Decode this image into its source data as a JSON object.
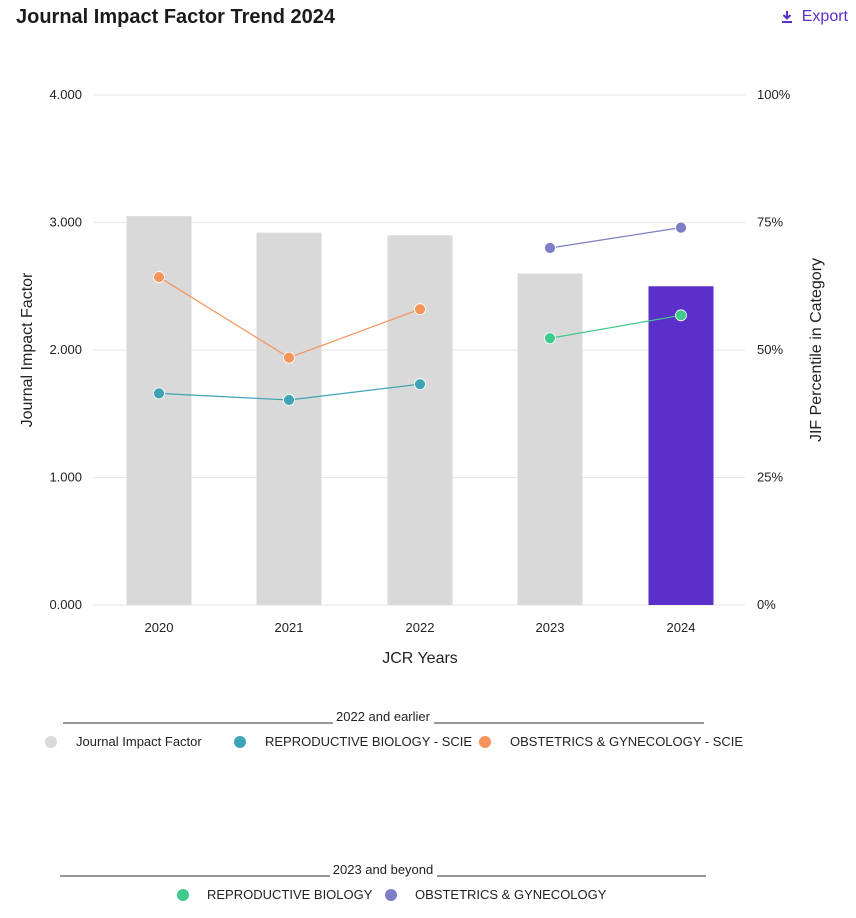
{
  "header": {
    "title": "Journal Impact Factor Trend 2024",
    "export_label": "Export",
    "export_icon": "download-icon"
  },
  "chart_data": {
    "type": "bar",
    "title": "Journal Impact Factor Trend 2024",
    "xlabel": "JCR Years",
    "ylabel": "Journal Impact Factor",
    "y2label": "JIF Percentile in Category",
    "categories": [
      "2020",
      "2021",
      "2022",
      "2023",
      "2024"
    ],
    "ylim": [
      0,
      4
    ],
    "y2lim": [
      0,
      100
    ],
    "yticks": [
      "0.000",
      "1.000",
      "2.000",
      "3.000",
      "4.000"
    ],
    "y2ticks": [
      "0%",
      "25%",
      "50%",
      "75%",
      "100%"
    ],
    "bars": {
      "name": "Journal Impact Factor",
      "values": [
        3.05,
        2.92,
        2.9,
        2.6,
        2.5
      ],
      "colors": [
        "#d9d9d9",
        "#d9d9d9",
        "#d9d9d9",
        "#d9d9d9",
        "#5b2fc9"
      ]
    },
    "series": [
      {
        "name": "REPRODUCTIVE BIOLOGY - SCIE",
        "color": "#3ea3b5",
        "values": [
          41.5,
          40.2,
          43.3,
          null,
          null
        ]
      },
      {
        "name": "OBSTETRICS & GYNECOLOGY - SCIE",
        "color": "#f5935a",
        "values": [
          64.3,
          48.5,
          58.0,
          null,
          null
        ]
      },
      {
        "name": "REPRODUCTIVE BIOLOGY",
        "color": "#3ecb8c",
        "values": [
          null,
          null,
          null,
          52.3,
          56.8
        ]
      },
      {
        "name": "OBSTETRICS & GYNECOLOGY",
        "color": "#7c7fc5",
        "values": [
          null,
          null,
          null,
          70.0,
          74.0
        ]
      }
    ],
    "legend": {
      "group1": {
        "label": "2022 and earlier",
        "entries": [
          {
            "label": "Journal Impact Factor",
            "color": "#d9d9d9"
          },
          {
            "label": "REPRODUCTIVE BIOLOGY - SCIE",
            "color": "#3ea3b5"
          },
          {
            "label": "OBSTETRICS & GYNECOLOGY - SCIE",
            "color": "#f5935a"
          }
        ]
      },
      "group2": {
        "label": "2023 and beyond",
        "entries": [
          {
            "label": "REPRODUCTIVE BIOLOGY",
            "color": "#3ecb8c"
          },
          {
            "label": "OBSTETRICS & GYNECOLOGY",
            "color": "#7c7fc5"
          }
        ]
      }
    }
  }
}
